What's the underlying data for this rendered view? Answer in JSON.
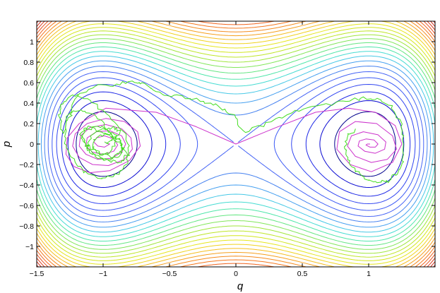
{
  "chart_data": {
    "type": "contour",
    "title": "",
    "xlabel": "q",
    "ylabel": "p",
    "xlim": [
      -1.5,
      1.5
    ],
    "ylim": [
      -1.2,
      1.2
    ],
    "xticks": [
      -1.5,
      -1,
      -0.5,
      0,
      0.5,
      1
    ],
    "xtick_labels": [
      "−1.5",
      "−1",
      "−0.5",
      "0",
      "0.5",
      "1"
    ],
    "yticks": [
      -1,
      -0.8,
      -0.6,
      -0.4,
      -0.2,
      0,
      0.2,
      0.4,
      0.6,
      0.8,
      1
    ],
    "ytick_labels": [
      "−1",
      "−0.8",
      "−0.6",
      "−0.4",
      "−0.2",
      "0",
      "0.2",
      "0.4",
      "0.6",
      "0.8",
      "1"
    ],
    "grid": false,
    "contours": {
      "levels": [
        -0.2,
        -0.16,
        -0.12,
        -0.08,
        -0.04,
        0.0,
        0.04,
        0.08,
        0.12,
        0.16,
        0.2,
        0.24,
        0.28,
        0.32,
        0.36,
        0.4,
        0.44,
        0.48,
        0.52,
        0.56,
        0.6,
        0.64,
        0.68,
        0.72,
        0.76,
        0.8,
        0.84,
        0.88,
        0.92,
        0.96,
        1.0
      ],
      "colors": [
        "#00008c",
        "#0a0ad2",
        "#1e28e6",
        "#3246f0",
        "#3c5af5",
        "#4664f5",
        "#4682f0",
        "#46a0f0",
        "#46c8e6",
        "#46dcd2",
        "#50e6aa",
        "#64e682",
        "#82e65a",
        "#a0e63c",
        "#bee628",
        "#d2e61e",
        "#e6e61e",
        "#f0d21e",
        "#f5be1e",
        "#f5a01e",
        "#f58c1e",
        "#f5781e",
        "#f0641e",
        "#e6501e",
        "#dc3c1e",
        "#d2321e",
        "#c8281e",
        "#be1e1e",
        "#b41414",
        "#aa0a0a",
        "#a00000"
      ]
    },
    "series": [
      {
        "style": "spiral",
        "color": "#cc33cc",
        "x": [
          -0.98,
          -0.95,
          -0.99,
          -1.04,
          -1.07,
          -1.05,
          -0.99,
          -0.92,
          -0.89,
          -0.92,
          -1.0,
          -1.08,
          -1.13,
          -1.12,
          -1.05,
          -0.95,
          -0.86,
          -0.83,
          -0.86,
          -0.94,
          -1.04,
          -1.13,
          -1.18,
          -1.17,
          -1.1,
          -0.98,
          -0.86,
          -0.79,
          -0.78,
          -0.84,
          -0.96,
          -1.08,
          -1.18,
          -1.23,
          -1.21,
          -1.12,
          -0.98,
          -0.84,
          -0.74,
          -0.72,
          -0.8,
          -0.95,
          -1.1,
          -1.22,
          -1.28,
          -1.27,
          -1.18,
          -0.98,
          -0.6,
          -0.3,
          0.0,
          0.3,
          0.6,
          0.85,
          1.05,
          1.2,
          1.25,
          1.18,
          1.02,
          0.86,
          0.76,
          0.78,
          0.9,
          1.06,
          1.18,
          1.21,
          1.14,
          1.02,
          0.9,
          0.84,
          0.87,
          0.96,
          1.07,
          1.13,
          1.12,
          1.05,
          0.97,
          0.92,
          0.93,
          0.98,
          1.04,
          1.07,
          1.05,
          1.01,
          0.98,
          0.99,
          1.01
        ],
        "y": [
          0.01,
          0.0,
          -0.03,
          -0.02,
          0.02,
          0.06,
          0.08,
          0.05,
          -0.01,
          -0.07,
          -0.1,
          -0.08,
          -0.02,
          0.06,
          0.12,
          0.13,
          0.08,
          0.0,
          -0.08,
          -0.14,
          -0.15,
          -0.1,
          -0.02,
          0.08,
          0.16,
          0.19,
          0.15,
          0.06,
          -0.05,
          -0.15,
          -0.21,
          -0.2,
          -0.13,
          -0.02,
          0.1,
          0.2,
          0.25,
          0.22,
          0.12,
          -0.02,
          -0.16,
          -0.26,
          -0.28,
          -0.22,
          -0.1,
          0.06,
          0.2,
          0.35,
          0.31,
          0.17,
          0.0,
          0.16,
          0.31,
          0.35,
          0.31,
          0.18,
          0.0,
          -0.18,
          -0.27,
          -0.2,
          -0.05,
          0.12,
          0.22,
          0.2,
          0.08,
          -0.05,
          -0.15,
          -0.18,
          -0.12,
          -0.02,
          0.08,
          0.12,
          0.09,
          0.02,
          -0.05,
          -0.09,
          -0.07,
          -0.02,
          0.03,
          0.05,
          0.04,
          0.0,
          -0.03,
          -0.03,
          -0.01,
          0.0,
          0.0
        ]
      },
      {
        "style": "noisy",
        "color": "#44dd22",
        "x": [
          -0.98,
          -0.92,
          -0.88,
          -0.93,
          -1.02,
          -1.1,
          -1.12,
          -1.06,
          -0.96,
          -0.87,
          -0.85,
          -0.92,
          -1.03,
          -1.13,
          -1.16,
          -1.1,
          -0.98,
          -0.87,
          -0.82,
          -0.87,
          -0.98,
          -1.1,
          -1.17,
          -1.14,
          -1.03,
          -0.92,
          -0.85,
          -0.88,
          -0.97,
          -1.06,
          -1.08,
          -1.02,
          -0.94,
          -0.9,
          -0.95,
          -1.03,
          -1.13,
          -1.22,
          -1.27,
          -1.28,
          -1.24,
          -1.15,
          -1.04,
          -0.92,
          -0.83,
          -0.8,
          -0.84,
          -0.96,
          -1.1,
          -1.22,
          -1.3,
          -1.33,
          -1.31,
          -1.22,
          -1.08,
          -0.92,
          -0.78,
          -0.68,
          -0.58,
          -0.45,
          -0.3,
          -0.15,
          -0.02,
          0.05,
          0.2,
          0.35,
          0.55,
          0.75,
          0.92,
          1.05,
          1.17,
          1.24,
          1.27,
          1.26,
          1.22,
          1.15,
          1.07,
          0.98,
          0.9,
          0.84,
          0.82,
          0.84,
          0.9
        ],
        "y": [
          0.01,
          0.05,
          0.12,
          0.16,
          0.14,
          0.06,
          -0.05,
          -0.13,
          -0.15,
          -0.1,
          -0.01,
          0.1,
          0.17,
          0.15,
          0.05,
          -0.07,
          -0.16,
          -0.18,
          -0.1,
          0.01,
          0.11,
          0.16,
          0.12,
          0.02,
          -0.09,
          -0.13,
          -0.06,
          0.04,
          0.1,
          0.06,
          -0.03,
          -0.11,
          -0.08,
          0.02,
          0.12,
          0.24,
          0.32,
          0.33,
          0.22,
          0.02,
          -0.14,
          -0.27,
          -0.33,
          -0.32,
          -0.22,
          -0.08,
          0.1,
          0.28,
          0.42,
          0.48,
          0.42,
          0.28,
          0.1,
          0.44,
          0.56,
          0.58,
          0.62,
          0.58,
          0.5,
          0.47,
          0.44,
          0.38,
          0.28,
          0.12,
          0.18,
          0.27,
          0.36,
          0.4,
          0.44,
          0.45,
          0.38,
          0.2,
          0.0,
          -0.15,
          -0.28,
          -0.36,
          -0.38,
          -0.34,
          -0.26,
          -0.15,
          -0.03,
          0.08,
          0.15
        ]
      }
    ]
  }
}
